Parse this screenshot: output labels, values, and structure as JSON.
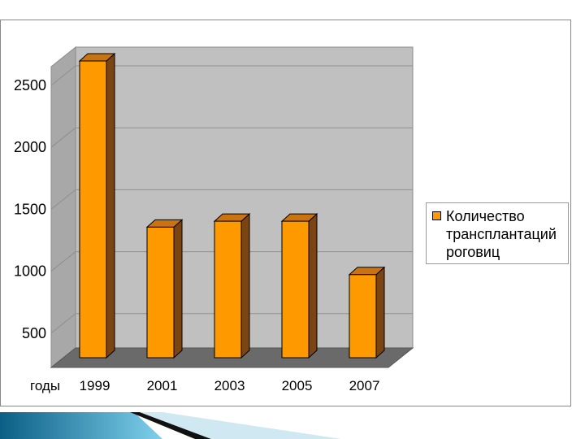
{
  "chart_data": {
    "type": "bar",
    "title": "",
    "xlabel": "годы",
    "ylabel": "",
    "categories": [
      "1999",
      "2001",
      "2003",
      "2005",
      "2007"
    ],
    "series": [
      {
        "name": "Количество трансплантаций роговиц",
        "values": [
          2500,
          1100,
          1150,
          1150,
          700
        ]
      }
    ],
    "ylim": [
      0,
      2500
    ],
    "yticks": [
      "500",
      "1000",
      "1500",
      "2000",
      "2500"
    ],
    "grid": true,
    "legend": "right",
    "style": "3d",
    "colors": {
      "bar_front": "#ff9900",
      "bar_side": "#7a4512",
      "bar_top": "#c97410",
      "plot_wall": "#c0c0c0",
      "floor": "#6a6a6a"
    }
  }
}
